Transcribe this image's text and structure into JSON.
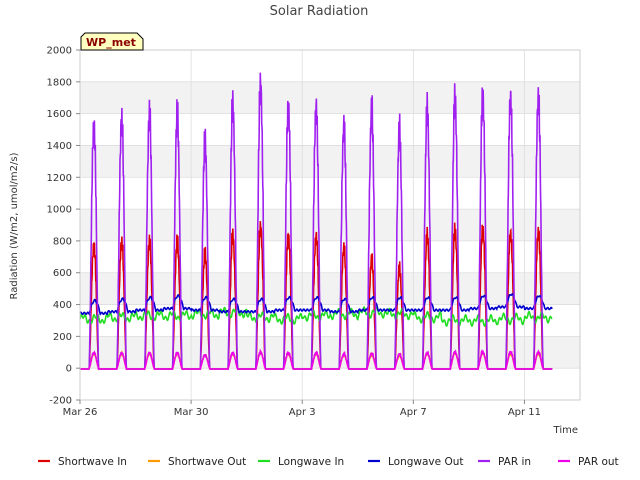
{
  "chart_data": {
    "type": "line",
    "title": "Solar Radiation",
    "xlabel": "Time",
    "ylabel": "Radiation (W/m2, umol/m2/s)",
    "badge": "WP_met",
    "ylim": [
      -200,
      2000
    ],
    "yticks": [
      -200,
      0,
      200,
      400,
      600,
      800,
      1000,
      1200,
      1400,
      1600,
      1800,
      2000
    ],
    "xlim": [
      0,
      18
    ],
    "xticks": [
      {
        "label": "Mar 26",
        "value": 0
      },
      {
        "label": "Mar 30",
        "value": 4
      },
      {
        "label": "Apr 3",
        "value": 8
      },
      {
        "label": "Apr 7",
        "value": 12
      },
      {
        "label": "Apr 11",
        "value": 16
      }
    ],
    "grid": true,
    "legend_position": "bottom",
    "day_offsets": [
      0,
      1,
      2,
      3,
      4,
      5,
      6,
      7,
      8,
      9,
      10,
      11,
      12,
      13,
      14,
      15,
      16
    ],
    "series": [
      {
        "name": "Shortwave In",
        "color": "#dd0000",
        "values": [
          840,
          860,
          860,
          860,
          780,
          900,
          960,
          900,
          900,
          820,
          740,
          680,
          900,
          940,
          950,
          920,
          930
        ]
      },
      {
        "name": "Shortwave Out",
        "color": "#ff9900",
        "values": [
          100,
          100,
          100,
          100,
          90,
          100,
          110,
          100,
          100,
          90,
          90,
          85,
          100,
          105,
          105,
          100,
          100
        ]
      },
      {
        "name": "Longwave In",
        "color": "#22dd22",
        "values": [
          310,
          320,
          330,
          330,
          340,
          350,
          320,
          310,
          330,
          340,
          350,
          340,
          320,
          300,
          300,
          310,
          320
        ]
      },
      {
        "name": "Longwave Out",
        "color": "#0000cc",
        "values": [
          360,
          370,
          380,
          390,
          380,
          370,
          370,
          380,
          380,
          370,
          380,
          380,
          380,
          380,
          390,
          400,
          390
        ]
      },
      {
        "name": "PAR in",
        "color": "#a020f0",
        "values": [
          1660,
          1700,
          1730,
          1730,
          1540,
          1790,
          1930,
          1790,
          1780,
          1650,
          1760,
          1620,
          1760,
          1840,
          1860,
          1850,
          1850
        ]
      },
      {
        "name": "PAR out",
        "color": "#ee00ee",
        "values": [
          105,
          105,
          105,
          105,
          90,
          105,
          110,
          105,
          105,
          95,
          100,
          95,
          105,
          110,
          110,
          110,
          110
        ]
      }
    ]
  }
}
